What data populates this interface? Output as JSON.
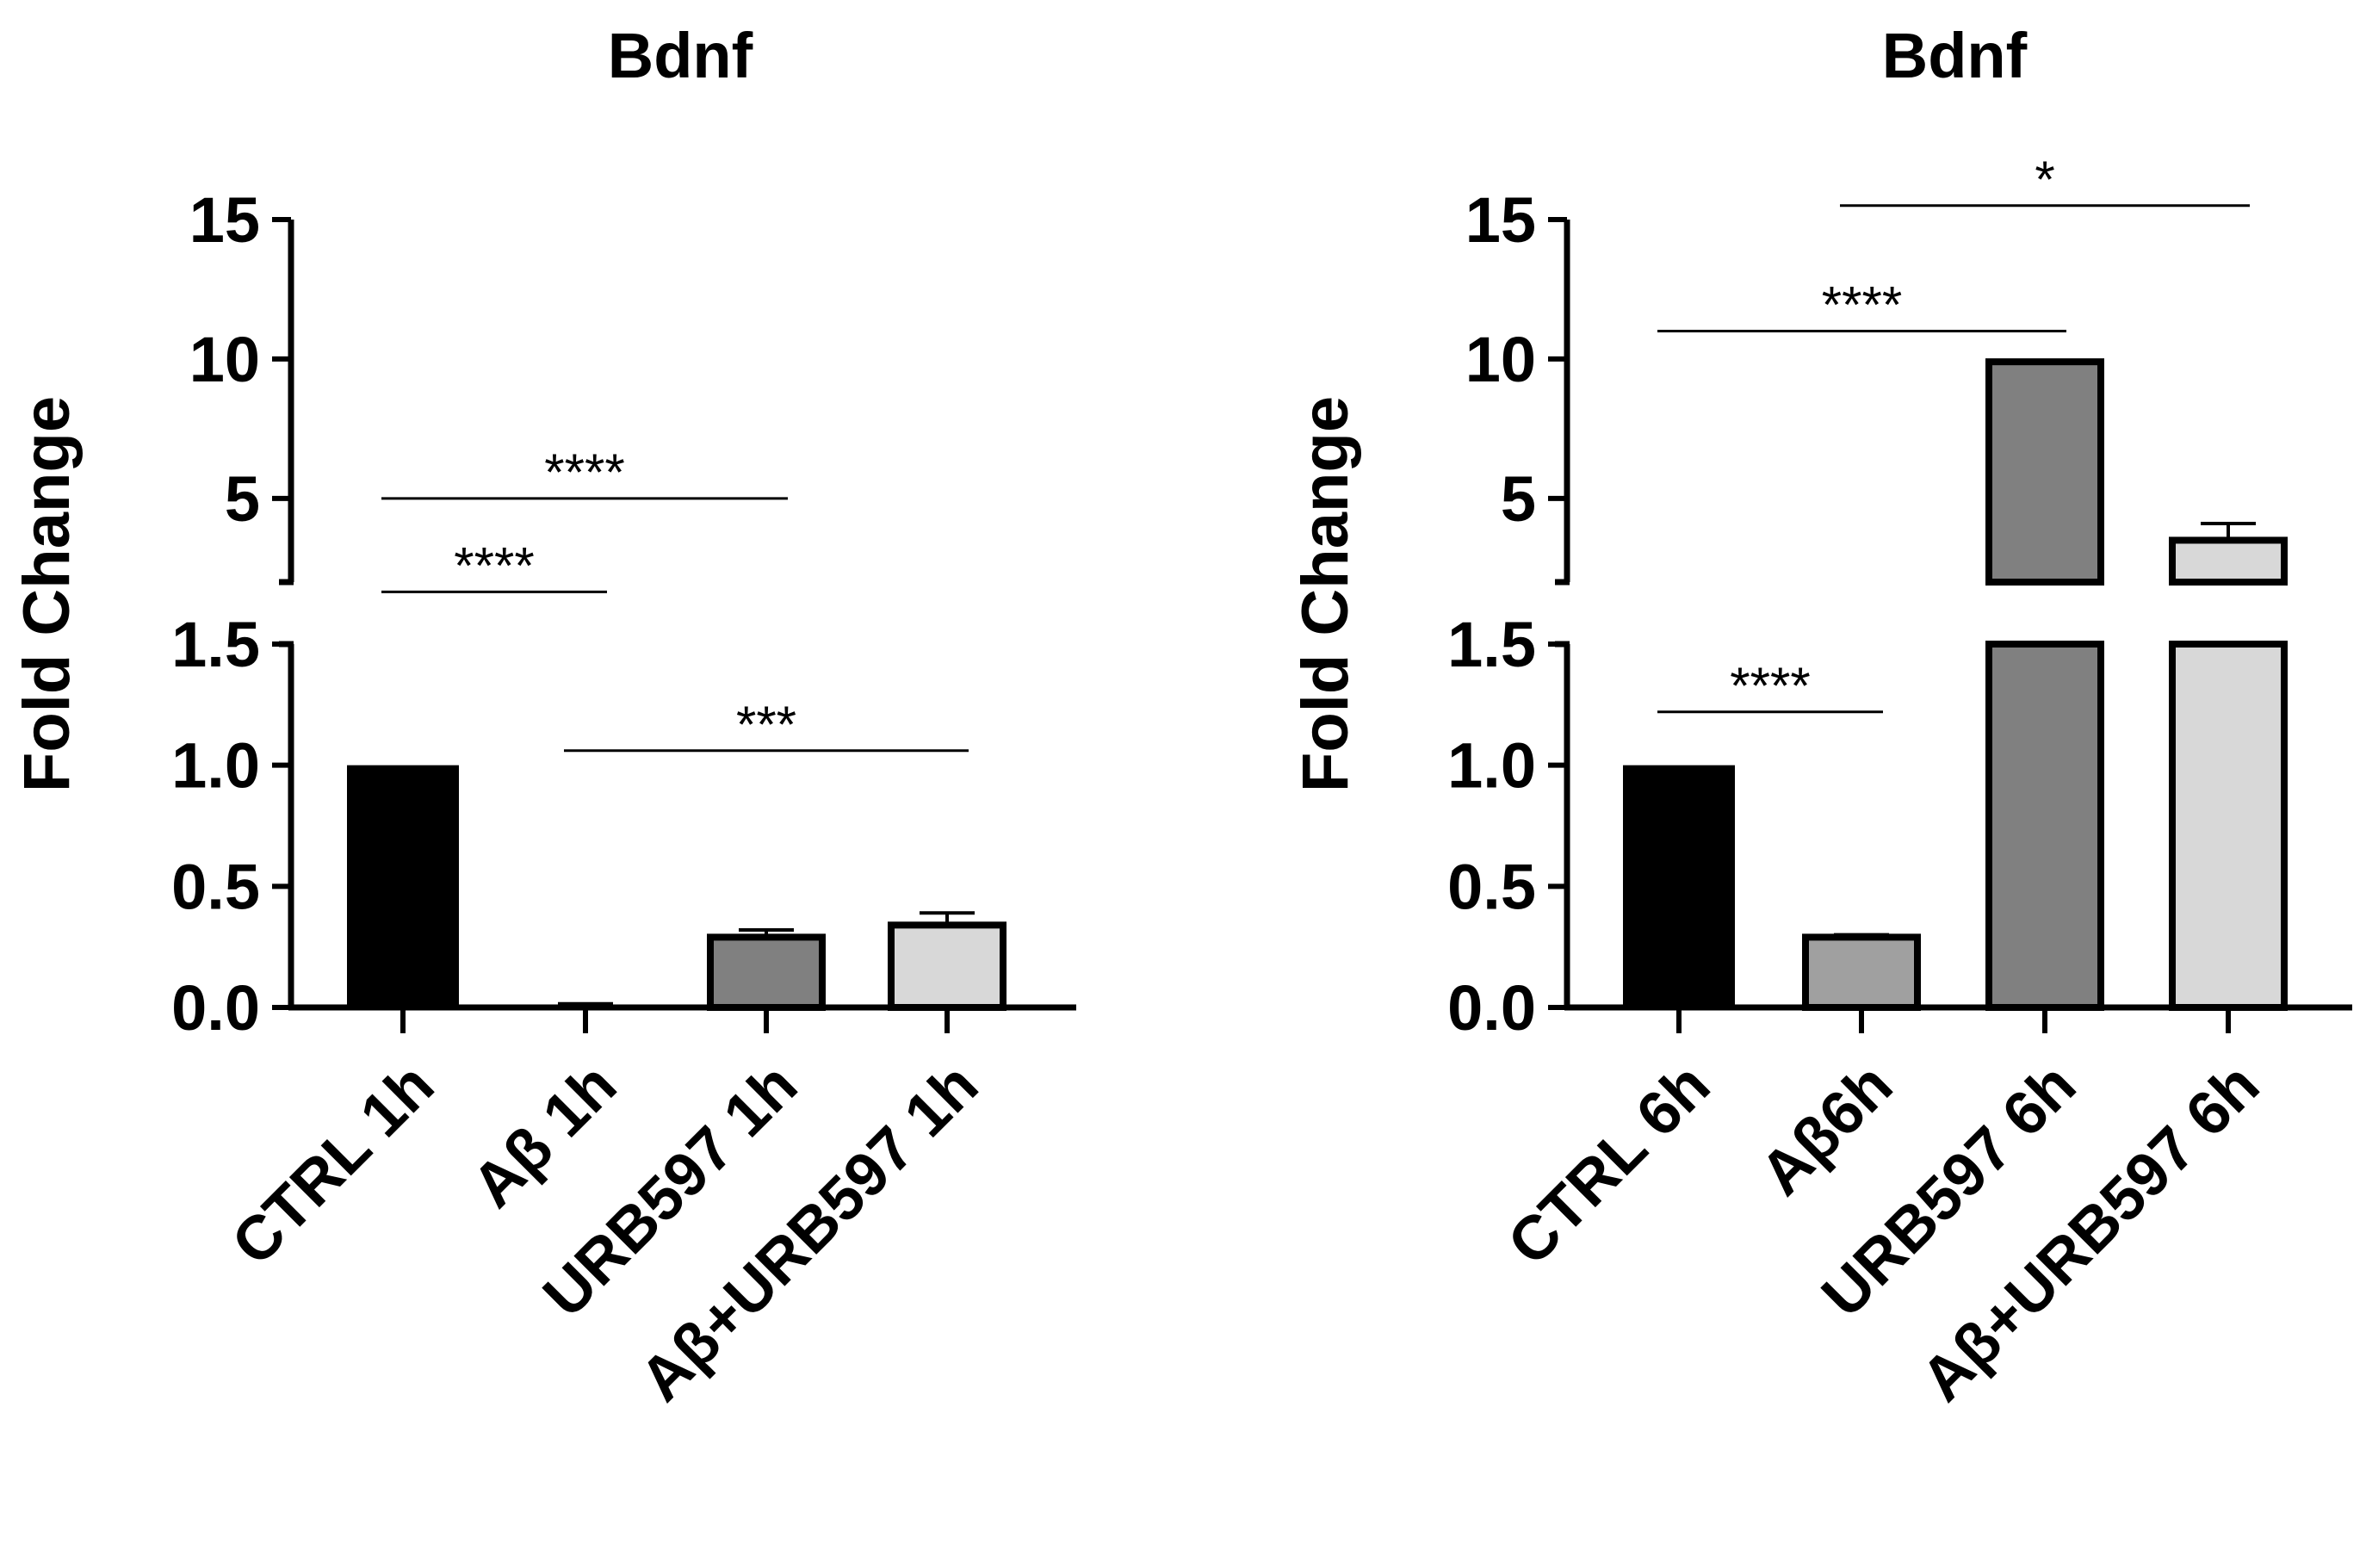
{
  "chart_data": [
    {
      "type": "bar",
      "title": "Bdnf",
      "ylabel": "Fold Change",
      "xlabel": "",
      "y_axis_broken": true,
      "y_segments": [
        {
          "range": [
            0,
            1.5
          ],
          "ticks": [
            "0.0",
            "0.5",
            "1.0",
            "1.5"
          ]
        },
        {
          "range": [
            2,
            15
          ],
          "ticks": [
            "5",
            "10",
            "15"
          ]
        }
      ],
      "categories": [
        "CTRL 1h",
        "Aβ 1h",
        "URB597 1h",
        "Aβ+URB597 1h"
      ],
      "values": [
        1.0,
        0.01,
        0.29,
        0.34
      ],
      "errors": [
        0,
        0.005,
        0.03,
        0.05
      ],
      "colors": [
        "#000000",
        "#000000",
        "#808080",
        "#d8d8d8"
      ],
      "significance": [
        {
          "from": 0,
          "to": 1,
          "label": "****",
          "y": 1.65
        },
        {
          "from": 0,
          "to": 2,
          "label": "****",
          "y": 5.0
        },
        {
          "from": 1,
          "to": 3,
          "label": "***",
          "y": 1.06
        }
      ]
    },
    {
      "type": "bar",
      "title": "Bdnf",
      "ylabel": "Fold Change",
      "xlabel": "",
      "y_axis_broken": true,
      "y_segments": [
        {
          "range": [
            0,
            1.5
          ],
          "ticks": [
            "0.0",
            "0.5",
            "1.0",
            "1.5"
          ]
        },
        {
          "range": [
            2,
            15
          ],
          "ticks": [
            "5",
            "10",
            "15"
          ]
        }
      ],
      "categories": [
        "CTRL 6h",
        "Aβ6h",
        "URB597 6h",
        "Aβ+URB597 6h"
      ],
      "values": [
        1.0,
        0.29,
        9.9,
        3.5
      ],
      "errors": [
        0,
        0.01,
        0,
        0.6
      ],
      "colors": [
        "#000000",
        "#a0a0a0",
        "#808080",
        "#d8d8d8"
      ],
      "significance": [
        {
          "from": 0,
          "to": 1,
          "label": "****",
          "y": 1.22
        },
        {
          "from": 0,
          "to": 2,
          "label": "****",
          "y": 11.0
        },
        {
          "from": 1,
          "to": 3,
          "label": "*",
          "y": 15.5
        }
      ]
    }
  ]
}
